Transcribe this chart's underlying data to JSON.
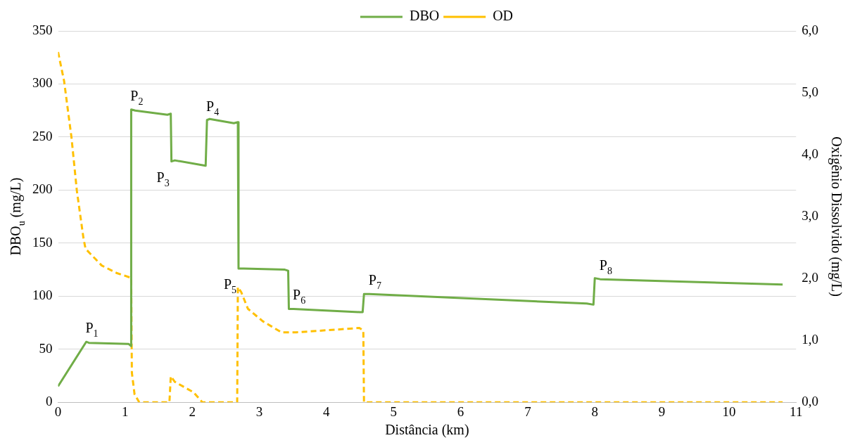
{
  "chart_data": {
    "type": "line",
    "xlabel": "Distância (km)",
    "ylabel": "DBO$_{u}$ (mg/L)",
    "y2label": "Oxigênio Dissolvido (mg/L)",
    "xlim": [
      0,
      11
    ],
    "xticks": [
      0,
      1,
      2,
      3,
      4,
      5,
      6,
      7,
      8,
      9,
      10,
      11
    ],
    "ylim": [
      0,
      350
    ],
    "yticks": [
      0,
      50,
      100,
      150,
      200,
      250,
      300,
      350
    ],
    "y2lim": [
      0,
      6
    ],
    "y2ticks": [
      {
        "value": 0,
        "label": "0,0"
      },
      {
        "value": 1,
        "label": "1,0"
      },
      {
        "value": 2,
        "label": "2,0"
      },
      {
        "value": 3,
        "label": "3,0"
      },
      {
        "value": 4,
        "label": "4,0"
      },
      {
        "value": 5,
        "label": "5,0"
      },
      {
        "value": 6,
        "label": "6,0"
      }
    ],
    "grid": "y",
    "legend": "top",
    "marker": "none",
    "series": [
      {
        "name": "DBO",
        "color": "#70ad47",
        "line_style": "solid",
        "x": [
          0,
          0.42,
          0.46,
          1.05,
          1.09,
          1.09,
          1.15,
          1.63,
          1.68,
          1.69,
          1.74,
          2.2,
          2.22,
          2.26,
          2.62,
          2.68,
          2.69,
          2.77,
          3.38,
          3.43,
          3.44,
          3.51,
          4.49,
          4.54,
          4.56,
          4.64,
          7.88,
          7.98,
          8.0,
          8.08,
          10.8
        ],
        "values": [
          15,
          57,
          56,
          55,
          53,
          276,
          275,
          271,
          272,
          227,
          228,
          223,
          266,
          267,
          263,
          264,
          126,
          126,
          125,
          124,
          88,
          88,
          85,
          85,
          102,
          102,
          93,
          92,
          117,
          116,
          111
        ]
      },
      {
        "name": "OD",
        "color": "#ffc000",
        "line_style": "dashed",
        "axis": "y2",
        "x": [
          0,
          0.09,
          0.2,
          0.28,
          0.38,
          0.41,
          0.65,
          0.87,
          1.09,
          1.1,
          1.14,
          1.21,
          1.66,
          1.68,
          1.74,
          2.02,
          2.15,
          2.67,
          2.68,
          2.73,
          2.83,
          3.05,
          3.33,
          3.55,
          4.49,
          4.55,
          4.56,
          10.8
        ],
        "values": [
          5.66,
          5.19,
          4.28,
          3.42,
          2.64,
          2.48,
          2.21,
          2.09,
          2.01,
          0.48,
          0.13,
          0,
          0,
          0.42,
          0.33,
          0.16,
          0,
          0,
          1.86,
          1.78,
          1.51,
          1.31,
          1.13,
          1.13,
          1.2,
          1.16,
          0,
          0
        ]
      }
    ],
    "annotations": [
      {
        "text": "P$_{1}$",
        "x": 0.42,
        "y": 57
      },
      {
        "text": "P$_{2}$",
        "x": 1.09,
        "y": 276
      },
      {
        "text": "P$_{3}$",
        "x": 1.69,
        "y": 227
      },
      {
        "text": "P$_{4}$",
        "x": 2.22,
        "y": 266
      },
      {
        "text": "P$_{5}$",
        "x": 2.69,
        "y": 126
      },
      {
        "text": "P$_{6}$",
        "x": 3.51,
        "y": 88
      },
      {
        "text": "P$_{7}$",
        "x": 4.64,
        "y": 102
      },
      {
        "text": "P$_{8}$",
        "x": 8.08,
        "y": 116
      }
    ]
  }
}
